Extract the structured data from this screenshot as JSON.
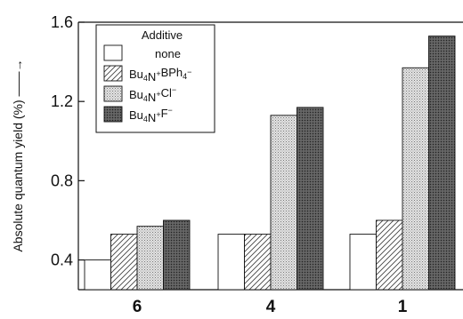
{
  "chart_data": {
    "type": "bar",
    "ylabel": "Absolute quantum yield (%) ——→",
    "ylim": [
      0.25,
      1.6
    ],
    "yticks": [
      {
        "value": 0.4,
        "label": "0.4"
      },
      {
        "value": 0.8,
        "label": "0.8"
      },
      {
        "value": 1.2,
        "label": "1.2"
      },
      {
        "value": 1.6,
        "label": "1.6"
      }
    ],
    "grid": false,
    "legend_position": "top-left",
    "legend_title": "Additive",
    "categories": [
      "6",
      "4",
      "1"
    ],
    "series": [
      {
        "name": "none",
        "legend_parts": [
          [
            "none",
            ""
          ]
        ],
        "pattern": "white",
        "values": [
          0.4,
          0.53,
          0.53
        ]
      },
      {
        "name": "Bu4N+BPh4−",
        "legend_parts": [
          [
            "Bu",
            ""
          ],
          [
            "4",
            "sub"
          ],
          [
            "N",
            ""
          ],
          [
            "+",
            "sup"
          ],
          [
            "BPh",
            ""
          ],
          [
            "4",
            "sub"
          ],
          [
            "−",
            "sup"
          ]
        ],
        "pattern": "diagonal-hatch",
        "values": [
          0.53,
          0.53,
          0.6
        ]
      },
      {
        "name": "Bu4N+Cl−",
        "legend_parts": [
          [
            "Bu",
            ""
          ],
          [
            "4",
            "sub"
          ],
          [
            "N",
            ""
          ],
          [
            "+",
            "sup"
          ],
          [
            "Cl",
            ""
          ],
          [
            "−",
            "sup"
          ]
        ],
        "pattern": "light-stipple",
        "values": [
          0.57,
          1.13,
          1.37
        ]
      },
      {
        "name": "Bu4N+F−",
        "legend_parts": [
          [
            "Bu",
            ""
          ],
          [
            "4",
            "sub"
          ],
          [
            "N",
            ""
          ],
          [
            "+",
            "sup"
          ],
          [
            "F",
            ""
          ],
          [
            "−",
            "sup"
          ]
        ],
        "pattern": "dark-stipple",
        "values": [
          0.6,
          1.17,
          1.53
        ]
      }
    ]
  }
}
